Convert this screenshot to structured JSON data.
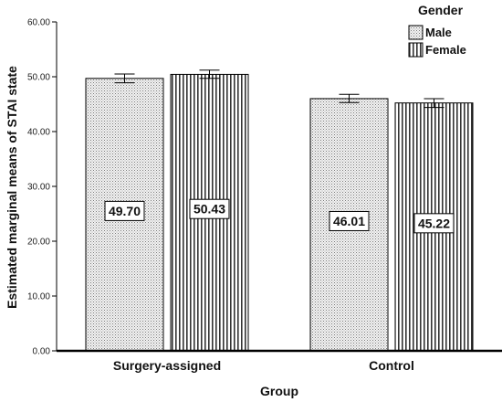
{
  "chart_data": {
    "type": "bar",
    "title": "",
    "xlabel": "Group",
    "ylabel": "Estimated marginal means of STAI state",
    "categories": [
      "Surgery-assigned",
      "Control"
    ],
    "series": [
      {
        "name": "Male",
        "pattern": "dots",
        "values": [
          49.7,
          46.01
        ],
        "value_labels": [
          "49.70",
          "46.01"
        ],
        "error_low": [
          48.9,
          45.3
        ],
        "error_high": [
          50.5,
          46.8
        ]
      },
      {
        "name": "Female",
        "pattern": "vertical-lines",
        "values": [
          50.43,
          45.22
        ],
        "value_labels": [
          "50.43",
          "45.22"
        ],
        "error_low": [
          49.7,
          44.4
        ],
        "error_high": [
          51.2,
          46.0
        ]
      }
    ],
    "legend": {
      "title": "Gender",
      "position": "top-right"
    },
    "ylim": [
      0,
      60
    ],
    "yticks": [
      "0.00",
      "10.00",
      "20.00",
      "30.00",
      "40.00",
      "50.00",
      "60.00"
    ],
    "grid": false
  }
}
